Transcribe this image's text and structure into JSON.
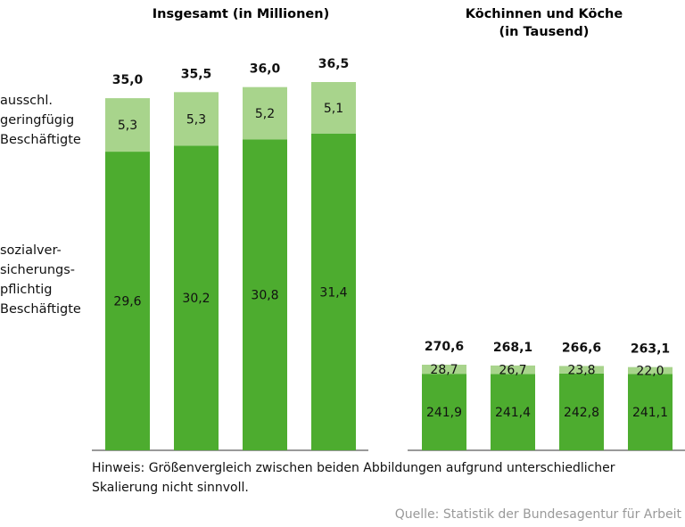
{
  "charts": [
    {
      "type": "stacked-bar",
      "title": "Insgesamt (in Millionen)",
      "categories": [
        null,
        null,
        null,
        null
      ],
      "series": [
        {
          "name": "sozialver-\nsicherungs-\npflichtig\nBeschäftigte",
          "color": "#4dac2f",
          "values": [
            29.6,
            30.2,
            30.8,
            31.4
          ],
          "value_labels": [
            "29,6",
            "30,2",
            "30,8",
            "31,4"
          ]
        },
        {
          "name": "ausschl.\ngeringfügig\nBeschäftigte",
          "color": "#a8d48c",
          "values": [
            5.3,
            5.3,
            5.2,
            5.1
          ],
          "value_labels": [
            "5,3",
            "5,3",
            "5,2",
            "5,1"
          ]
        }
      ],
      "totals": [
        35.0,
        35.5,
        36.0,
        36.5
      ],
      "total_labels": [
        "35,0",
        "35,5",
        "36,0",
        "36,5"
      ]
    },
    {
      "type": "stacked-bar",
      "title": "Köchinnen und Köche\n(in Tausend)",
      "categories": [
        null,
        null,
        null,
        null
      ],
      "series": [
        {
          "color": "#4dac2f",
          "values": [
            241.9,
            241.4,
            242.8,
            241.1
          ],
          "value_labels": [
            "241,9",
            "241,4",
            "242,8",
            "241,1"
          ]
        },
        {
          "color": "#a8d48c",
          "values": [
            28.7,
            26.7,
            23.8,
            22.0
          ],
          "value_labels": [
            "28,7",
            "26,7",
            "23,8",
            "22,0"
          ]
        }
      ],
      "totals": [
        270.6,
        268.1,
        266.6,
        263.1
      ],
      "total_labels": [
        "270,6",
        "268,1",
        "266,6",
        "263,1"
      ]
    }
  ],
  "note": "Hinweis: Größenvergleich zwischen beiden Abbildungen aufgrund unterschiedlicher\nSkalierung nicht sinnvoll.",
  "source": "Quelle: Statistik der Bundesagentur für Arbeit"
}
